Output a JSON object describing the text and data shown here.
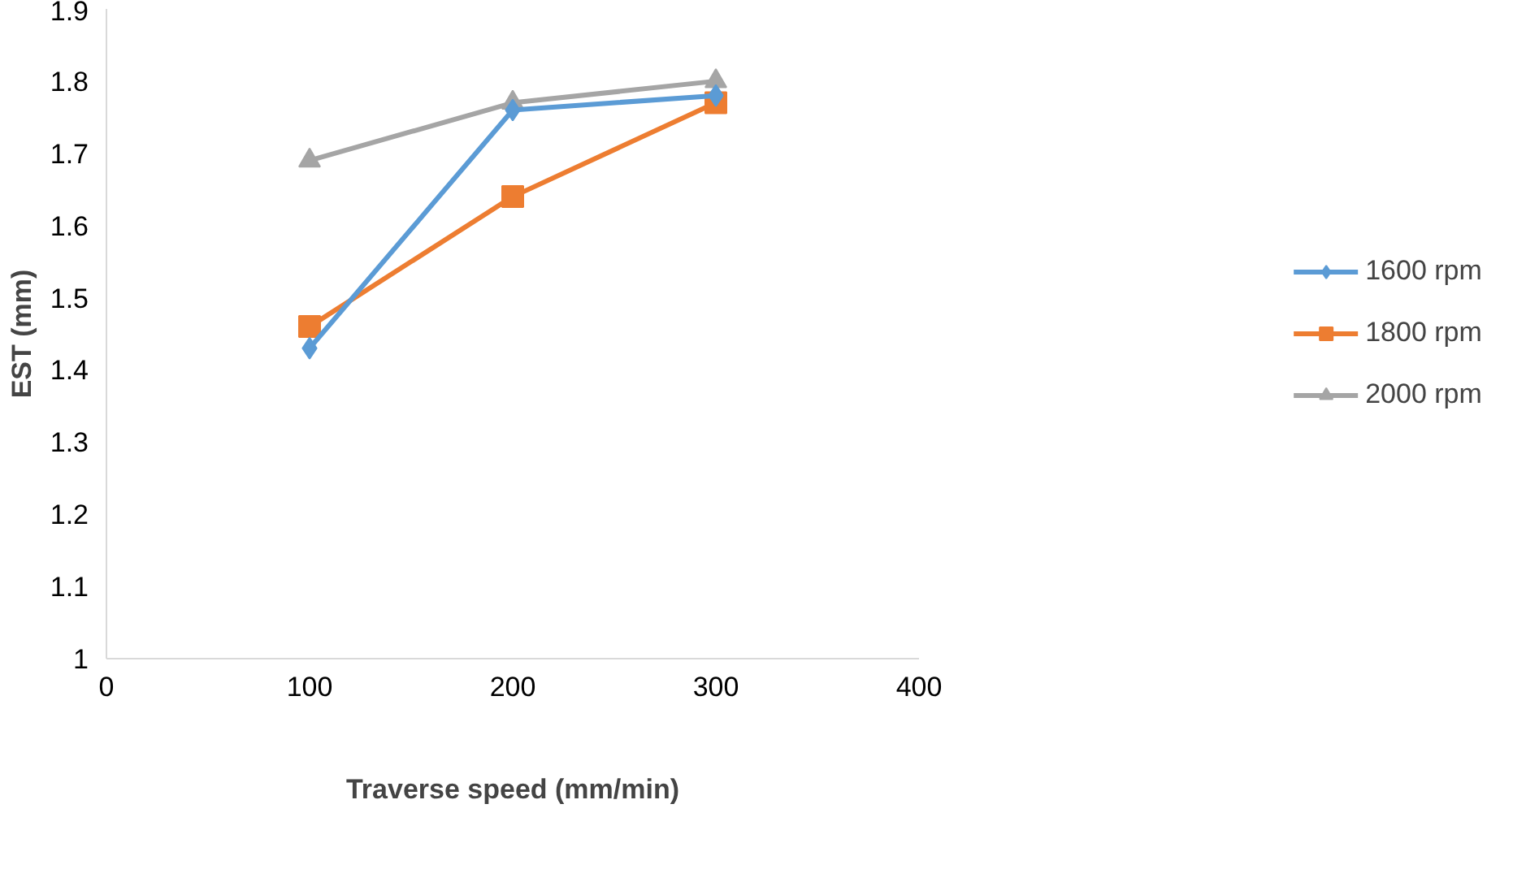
{
  "chart_data": {
    "type": "line",
    "xlabel": "Traverse speed (mm/min)",
    "ylabel": "EST (mm)",
    "x": [
      100,
      200,
      300
    ],
    "series": [
      {
        "name": "1600 rpm",
        "color": "#5b9bd5",
        "marker": "diamond",
        "values": [
          1.43,
          1.76,
          1.78
        ]
      },
      {
        "name": "1800 rpm",
        "color": "#ed7d31",
        "marker": "square",
        "values": [
          1.46,
          1.64,
          1.77
        ]
      },
      {
        "name": "2000 rpm",
        "color": "#a5a5a5",
        "marker": "triangle",
        "values": [
          1.69,
          1.77,
          1.8
        ]
      }
    ],
    "xlim": [
      0,
      400
    ],
    "xticks": [
      0,
      100,
      200,
      300,
      400
    ],
    "ylim": [
      1,
      1.9
    ],
    "yticks": [
      1,
      1.1,
      1.2,
      1.3,
      1.4,
      1.5,
      1.6,
      1.7,
      1.8,
      1.9
    ],
    "grid": false,
    "legend": "right",
    "line_style": "solid"
  }
}
